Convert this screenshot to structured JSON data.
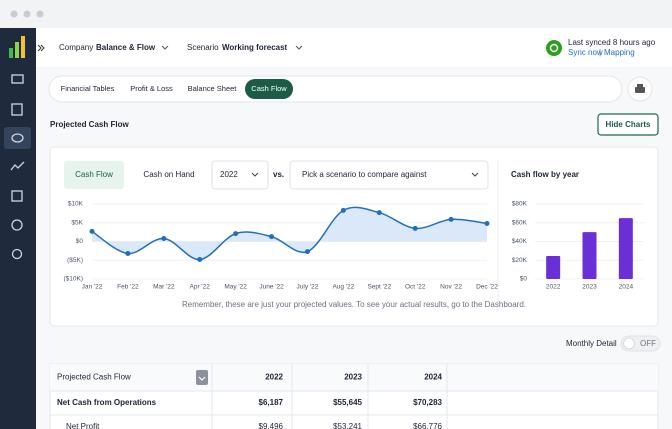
{
  "header": {
    "company_label": "Company",
    "company": "Balance & Flow",
    "scenario_label": "Scenario",
    "scenario": "Working forecast",
    "sync_status": "Last synced 8 hours ago",
    "sync_now": "Sync now",
    "separator": "|",
    "mapping": "Mapping"
  },
  "tabs": [
    "Financial Tables",
    "Profit & Loss",
    "Balance Sheet",
    "Cash Flow"
  ],
  "active_tab": 3,
  "page_title": "Projected Cash Flow",
  "hide_charts_button": "Hide Charts",
  "chart_panel": {
    "tabs": [
      "Cash Flow",
      "Cash on Hand"
    ],
    "year": "2022",
    "vs": "vs.",
    "compare_placeholder": "Pick a scenario to compare against",
    "note": "Remember, these are just your projected values. To see your actual results, go to the Dashboard."
  },
  "chart_data": [
    {
      "type": "line",
      "categories": [
        "Jan '22",
        "Feb '22",
        "Mar '22",
        "Apr '22",
        "May '22",
        "June '22",
        "July '22",
        "Aug '22",
        "Sept '22",
        "Oct '22",
        "Nov '22",
        "Dec '22"
      ],
      "values": [
        2700,
        -3200,
        800,
        -4800,
        2100,
        1300,
        -2700,
        8300,
        7700,
        3500,
        5900,
        4800
      ],
      "color": "#1f6fbf",
      "area_color": "#dbe8f9",
      "ylim": [
        -10000,
        10000
      ],
      "yticks": [
        {
          "value": 10000,
          "label": "$10K"
        },
        {
          "value": 5000,
          "label": "$5K"
        },
        {
          "value": 0,
          "label": "$0"
        },
        {
          "value": -5000,
          "label": "($5K)"
        },
        {
          "value": -10000,
          "label": "($10K)"
        }
      ],
      "grid": true
    },
    {
      "type": "bar",
      "title": "Cash flow by year",
      "categories": [
        "2022",
        "2023",
        "2024"
      ],
      "values": [
        24500,
        50000,
        65000
      ],
      "color": "#6a2fd6",
      "ylim": [
        0,
        80000
      ],
      "yticks": [
        {
          "value": 80000,
          "label": "$80K"
        },
        {
          "value": 60000,
          "label": "$60K"
        },
        {
          "value": 40000,
          "label": "$40K"
        },
        {
          "value": 20000,
          "label": "$20K"
        },
        {
          "value": 0,
          "label": "$0"
        }
      ],
      "grid": true
    }
  ],
  "monthly_detail": {
    "label": "Monthly Detail",
    "toggle": "OFF"
  },
  "table": {
    "header": [
      "Projected Cash Flow",
      "2022",
      "2023",
      "2024"
    ],
    "rows": [
      [
        "Net Cash from Operations",
        "$6,187",
        "$55,645",
        "$70,283"
      ],
      [
        "Net Profit",
        "$9,496",
        "$53,241",
        "$66,776"
      ]
    ]
  }
}
